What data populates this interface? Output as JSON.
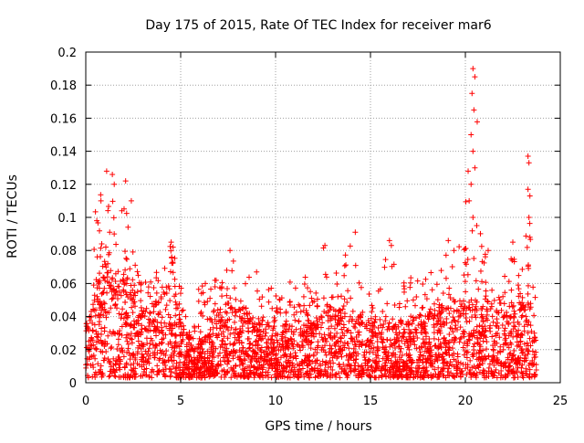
{
  "chart_data": {
    "type": "scatter",
    "title": "Day 175 of 2015, Rate Of TEC Index for receiver mar6",
    "xlabel": "GPS time / hours",
    "ylabel": "ROTI / TECUs",
    "xlim": [
      0,
      25
    ],
    "ylim": [
      0,
      0.2
    ],
    "x_ticks": [
      0,
      5,
      10,
      15,
      20,
      25
    ],
    "x_tick_labels": [
      "0",
      "5",
      "10",
      "15",
      "20",
      "25"
    ],
    "y_ticks": [
      0,
      0.02,
      0.04,
      0.06,
      0.08,
      0.1,
      0.12,
      0.14,
      0.16,
      0.18,
      0.2
    ],
    "y_tick_labels": [
      "0",
      "0.02",
      "0.04",
      "0.06",
      "0.08",
      "0.1",
      "0.12",
      "0.14",
      "0.16",
      "0.18",
      "0.2"
    ],
    "grid": true,
    "marker": "+",
    "color": "#ff0000",
    "data_span_hours": [
      0,
      23.75
    ],
    "envelope": {
      "x": [
        0,
        0.5,
        1,
        1.5,
        2,
        2.5,
        3,
        3.5,
        4,
        4.5,
        5,
        5.5,
        6,
        6.5,
        7,
        7.5,
        8,
        8.5,
        9,
        9.5,
        10,
        10.5,
        11,
        11.5,
        12,
        12.5,
        13,
        13.5,
        14,
        14.5,
        15,
        15.5,
        16,
        16.5,
        17,
        17.5,
        18,
        18.5,
        19,
        19.5,
        20,
        20.5,
        21,
        21.5,
        22,
        22.5,
        23,
        23.5,
        23.75
      ],
      "typical_high": [
        0.035,
        0.055,
        0.07,
        0.065,
        0.06,
        0.05,
        0.042,
        0.045,
        0.05,
        0.06,
        0.035,
        0.025,
        0.022,
        0.03,
        0.035,
        0.045,
        0.045,
        0.04,
        0.035,
        0.035,
        0.03,
        0.035,
        0.035,
        0.035,
        0.035,
        0.04,
        0.045,
        0.04,
        0.04,
        0.035,
        0.035,
        0.035,
        0.035,
        0.035,
        0.035,
        0.04,
        0.04,
        0.04,
        0.045,
        0.045,
        0.05,
        0.05,
        0.045,
        0.045,
        0.04,
        0.04,
        0.045,
        0.05,
        0.045
      ],
      "peak": [
        0.07,
        0.11,
        0.128,
        0.125,
        0.12,
        0.09,
        0.06,
        0.065,
        0.07,
        0.086,
        0.06,
        0.045,
        0.06,
        0.065,
        0.062,
        0.082,
        0.08,
        0.065,
        0.06,
        0.068,
        0.055,
        0.065,
        0.06,
        0.065,
        0.06,
        0.085,
        0.07,
        0.072,
        0.09,
        0.06,
        0.06,
        0.06,
        0.086,
        0.06,
        0.065,
        0.065,
        0.065,
        0.07,
        0.082,
        0.075,
        0.12,
        0.19,
        0.08,
        0.07,
        0.065,
        0.085,
        0.075,
        0.137,
        0.06
      ],
      "floor": 0.003
    },
    "notable_points": [
      {
        "x": 20.4,
        "y": 0.19
      },
      {
        "x": 20.5,
        "y": 0.185
      },
      {
        "x": 20.35,
        "y": 0.175
      },
      {
        "x": 20.45,
        "y": 0.165
      },
      {
        "x": 20.3,
        "y": 0.15
      },
      {
        "x": 20.4,
        "y": 0.14
      },
      {
        "x": 20.5,
        "y": 0.13
      },
      {
        "x": 20.3,
        "y": 0.12
      },
      {
        "x": 20.2,
        "y": 0.11
      },
      {
        "x": 20.4,
        "y": 0.1
      },
      {
        "x": 20.6,
        "y": 0.095
      },
      {
        "x": 23.3,
        "y": 0.137
      },
      {
        "x": 23.35,
        "y": 0.133
      },
      {
        "x": 23.3,
        "y": 0.117
      },
      {
        "x": 23.4,
        "y": 0.113
      },
      {
        "x": 23.35,
        "y": 0.1
      },
      {
        "x": 23.4,
        "y": 0.088
      },
      {
        "x": 1.1,
        "y": 0.128
      },
      {
        "x": 1.4,
        "y": 0.126
      },
      {
        "x": 1.5,
        "y": 0.12
      },
      {
        "x": 2.1,
        "y": 0.122
      },
      {
        "x": 2.4,
        "y": 0.11
      },
      {
        "x": 0.8,
        "y": 0.11
      },
      {
        "x": 1.9,
        "y": 0.104
      },
      {
        "x": 14.2,
        "y": 0.091
      },
      {
        "x": 16.0,
        "y": 0.086
      },
      {
        "x": 16.1,
        "y": 0.083
      },
      {
        "x": 4.5,
        "y": 0.085
      },
      {
        "x": 4.6,
        "y": 0.082
      },
      {
        "x": 7.6,
        "y": 0.08
      },
      {
        "x": 12.6,
        "y": 0.083
      },
      {
        "x": 19.1,
        "y": 0.086
      },
      {
        "x": 19.4,
        "y": 0.08
      },
      {
        "x": 21.2,
        "y": 0.08
      },
      {
        "x": 22.5,
        "y": 0.085
      },
      {
        "x": 6.3,
        "y": 0.06
      },
      {
        "x": 9.0,
        "y": 0.067
      }
    ]
  }
}
